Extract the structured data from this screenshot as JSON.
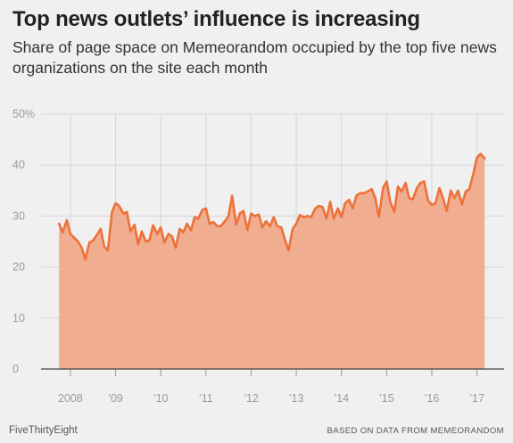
{
  "chart_data": {
    "type": "area",
    "title": "Top news outlets’ influence is increasing",
    "subtitle": "Share of page space on Memeorandom occupied by the top five news organizations on the site each month",
    "xlabel": "",
    "ylabel": "",
    "ylim": [
      0,
      50
    ],
    "xlim": [
      2007.35,
      2017.6
    ],
    "y_ticks": [
      0,
      10,
      20,
      30,
      40,
      50
    ],
    "y_tick_labels": [
      "0",
      "10",
      "20",
      "30",
      "40",
      "50%"
    ],
    "x_ticks": [
      2008,
      2009,
      2010,
      2011,
      2012,
      2013,
      2014,
      2015,
      2016,
      2017
    ],
    "x_tick_labels": [
      "2008",
      "’09",
      "’10",
      "’11",
      "’12",
      "’13",
      "’14",
      "’15",
      "’16",
      "’17"
    ],
    "grid": true,
    "line_color": "#ed713a",
    "fill_color": "#f0ad8f",
    "series": [
      {
        "x": [
          2007.75,
          2007.83,
          2007.92,
          2008.0,
          2008.08,
          2008.17,
          2008.25,
          2008.33,
          2008.42,
          2008.5,
          2008.58,
          2008.67,
          2008.75,
          2008.83,
          2008.92,
          2009.0,
          2009.08,
          2009.17,
          2009.25,
          2009.33,
          2009.42,
          2009.5,
          2009.58,
          2009.67,
          2009.75,
          2009.83,
          2009.92,
          2010.0,
          2010.08,
          2010.17,
          2010.25,
          2010.33,
          2010.42,
          2010.5,
          2010.58,
          2010.67,
          2010.75,
          2010.83,
          2010.92,
          2011.0,
          2011.08,
          2011.17,
          2011.25,
          2011.33,
          2011.42,
          2011.5,
          2011.58,
          2011.67,
          2011.75,
          2011.83,
          2011.92,
          2012.0,
          2012.08,
          2012.17,
          2012.25,
          2012.33,
          2012.42,
          2012.5,
          2012.58,
          2012.67,
          2012.75,
          2012.83,
          2012.92,
          2013.0,
          2013.08,
          2013.17,
          2013.25,
          2013.33,
          2013.42,
          2013.5,
          2013.58,
          2013.67,
          2013.75,
          2013.83,
          2013.92,
          2014.0,
          2014.08,
          2014.17,
          2014.25,
          2014.33,
          2014.42,
          2014.5,
          2014.58,
          2014.67,
          2014.75,
          2014.83,
          2014.92,
          2015.0,
          2015.08,
          2015.17,
          2015.25,
          2015.33,
          2015.42,
          2015.5,
          2015.58,
          2015.67,
          2015.75,
          2015.83,
          2015.92,
          2016.0,
          2016.08,
          2016.17,
          2016.25,
          2016.33,
          2016.42,
          2016.5,
          2016.58,
          2016.67,
          2016.75,
          2016.83,
          2016.92,
          2017.0,
          2017.08,
          2017.17
        ],
        "values": [
          28.5,
          26.8,
          29.2,
          26.5,
          25.8,
          25.0,
          23.8,
          21.5,
          24.8,
          25.2,
          26.2,
          27.5,
          24.0,
          23.3,
          30.8,
          32.5,
          32.0,
          30.5,
          30.8,
          27.0,
          28.3,
          24.5,
          27.0,
          25.0,
          25.3,
          28.2,
          26.5,
          27.8,
          24.8,
          26.5,
          26.0,
          23.8,
          27.5,
          26.8,
          28.5,
          27.2,
          29.8,
          29.5,
          31.2,
          31.5,
          28.5,
          28.8,
          28.0,
          28.0,
          29.0,
          30.0,
          34.0,
          28.3,
          30.5,
          31.0,
          27.3,
          30.5,
          30.0,
          30.3,
          27.8,
          29.0,
          28.0,
          29.8,
          28.0,
          27.8,
          25.3,
          23.3,
          27.5,
          28.5,
          30.2,
          29.8,
          30.0,
          29.8,
          31.5,
          32.0,
          31.8,
          29.5,
          32.8,
          29.5,
          31.5,
          29.8,
          32.5,
          33.2,
          31.5,
          34.0,
          34.5,
          34.5,
          34.8,
          35.3,
          33.5,
          29.8,
          35.5,
          36.8,
          32.8,
          30.8,
          35.8,
          34.8,
          36.5,
          33.5,
          33.3,
          35.5,
          36.5,
          36.8,
          33.0,
          32.2,
          32.5,
          35.5,
          33.5,
          31.0,
          35.0,
          33.5,
          35.0,
          32.3,
          34.8,
          35.3,
          38.3,
          41.5,
          42.2,
          41.3
        ]
      }
    ]
  },
  "footer": {
    "source_left": "FiveThirtyEight",
    "source_right": "BASED ON DATA FROM MEMEORANDOM"
  }
}
